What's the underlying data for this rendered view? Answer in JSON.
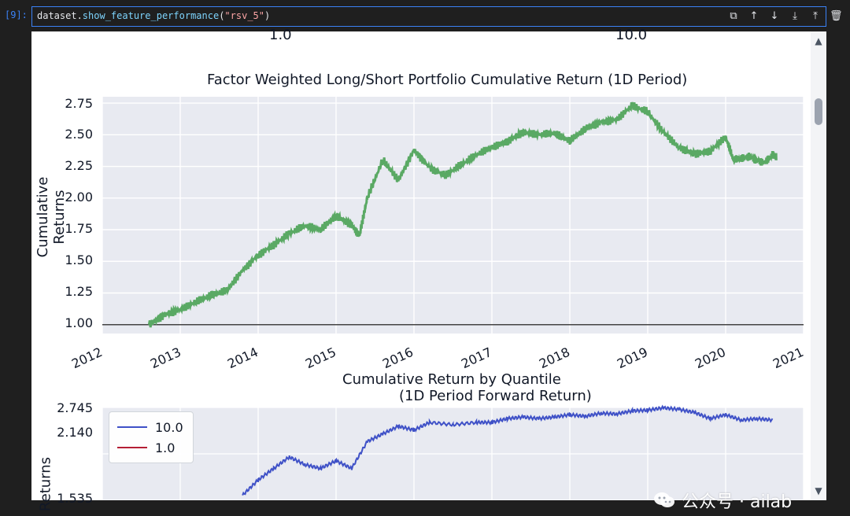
{
  "cell": {
    "prompt": "[9]:",
    "code_prefix": "dataset.",
    "code_call": "show_feature_performance",
    "code_open": "(",
    "code_string": "\"rsv_5\"",
    "code_close": ")"
  },
  "toolbar": {
    "icons": [
      "copy-icon",
      "move-up-icon",
      "move-down-icon",
      "insert-below-icon",
      "insert-above-icon",
      "delete-icon"
    ],
    "glyphs": [
      "⧉",
      "↑",
      "↓",
      "⤓",
      "⤒",
      "🗑"
    ]
  },
  "top_axis_labels": [
    "1.0",
    "10.0"
  ],
  "charts": {
    "main": {
      "title": "Factor Weighted Long/Short Portfolio Cumulative Return (1D Period)",
      "ylabel": "Cumulative Returns",
      "yticks": [
        "2.75",
        "2.50",
        "2.25",
        "2.00",
        "1.75",
        "1.50",
        "1.25",
        "1.00"
      ],
      "xticks": [
        "2012",
        "2013",
        "2014",
        "2015",
        "2016",
        "2017",
        "2018",
        "2019",
        "2020",
        "2021"
      ]
    },
    "quantile": {
      "title_line1": "Cumulative Return by Quantile",
      "title_line2": "(1D Period Forward Return)",
      "ylabel": "Returns",
      "yticks": [
        "2.745",
        "2.140",
        "1.535"
      ],
      "legend": [
        {
          "label": "10.0",
          "color": "#3f51c7"
        },
        {
          "label": "1.0",
          "color": "#b51f35"
        }
      ]
    }
  },
  "chart_data": [
    {
      "type": "line",
      "title": "Factor Weighted Long/Short Portfolio Cumulative Return (1D Period)",
      "xlabel": "",
      "ylabel": "Cumulative Returns",
      "xlim": [
        "2012",
        "2021"
      ],
      "ylim": [
        0.93,
        2.8
      ],
      "grid": true,
      "series": [
        {
          "color": "#5aa964",
          "x": [
            2012.6,
            2012.8,
            2013.0,
            2013.2,
            2013.4,
            2013.6,
            2013.8,
            2014.0,
            2014.2,
            2014.4,
            2014.6,
            2014.8,
            2015.0,
            2015.2,
            2015.3,
            2015.4,
            2015.6,
            2015.8,
            2016.0,
            2016.2,
            2016.4,
            2016.6,
            2016.8,
            2017.0,
            2017.2,
            2017.4,
            2017.6,
            2017.8,
            2018.0,
            2018.2,
            2018.4,
            2018.6,
            2018.8,
            2019.0,
            2019.2,
            2019.4,
            2019.6,
            2019.8,
            2020.0,
            2020.1,
            2020.2,
            2020.3,
            2020.4,
            2020.5,
            2020.6,
            2020.65
          ],
          "y": [
            1.0,
            1.08,
            1.12,
            1.18,
            1.23,
            1.27,
            1.43,
            1.55,
            1.63,
            1.72,
            1.78,
            1.75,
            1.86,
            1.79,
            1.7,
            2.0,
            2.3,
            2.14,
            2.38,
            2.24,
            2.18,
            2.26,
            2.34,
            2.4,
            2.45,
            2.52,
            2.5,
            2.51,
            2.45,
            2.55,
            2.6,
            2.62,
            2.73,
            2.68,
            2.52,
            2.4,
            2.35,
            2.37,
            2.48,
            2.3,
            2.31,
            2.33,
            2.3,
            2.28,
            2.34,
            2.32
          ]
        }
      ],
      "reference_lines": [
        {
          "y": 1.0,
          "color": "#444444"
        }
      ]
    },
    {
      "type": "line",
      "title": "Cumulative Return by Quantile\n(1D Period Forward Return)",
      "xlabel": "",
      "ylabel": "Returns",
      "ylim": [
        1.535,
        2.745
      ],
      "grid": true,
      "legend": "top-left",
      "series": [
        {
          "name": "10.0",
          "color": "#3f51c7",
          "x": [
            2013.8,
            2014.0,
            2014.2,
            2014.4,
            2014.6,
            2014.8,
            2015.0,
            2015.2,
            2015.4,
            2015.6,
            2015.8,
            2016.0,
            2016.2,
            2016.5,
            2016.8,
            2017.0,
            2017.2,
            2017.4,
            2017.6,
            2017.8,
            2018.0,
            2018.2,
            2018.4,
            2018.6,
            2018.8,
            2019.0,
            2019.2,
            2019.4,
            2019.6,
            2019.8,
            2020.0,
            2020.2,
            2020.4,
            2020.6
          ],
          "y": [
            1.6,
            1.8,
            1.95,
            2.1,
            2.0,
            1.95,
            2.05,
            1.95,
            2.3,
            2.4,
            2.5,
            2.45,
            2.55,
            2.52,
            2.55,
            2.55,
            2.6,
            2.62,
            2.6,
            2.62,
            2.65,
            2.63,
            2.67,
            2.66,
            2.7,
            2.71,
            2.74,
            2.72,
            2.68,
            2.6,
            2.65,
            2.58,
            2.6,
            2.58
          ]
        },
        {
          "name": "1.0",
          "color": "#b51f35",
          "x": [],
          "y": []
        }
      ]
    }
  ],
  "scrollbar": {
    "up_glyph": "▲",
    "down_glyph": "▼"
  },
  "watermark": {
    "text": "公众号 · ailab"
  }
}
